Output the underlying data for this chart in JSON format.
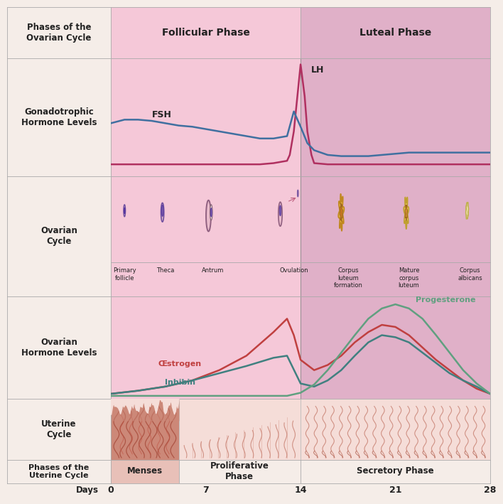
{
  "follicular_label": "Follicular Phase",
  "luteal_label": "Luteal Phase",
  "days_ticks": [
    0,
    7,
    14,
    21,
    28
  ],
  "colors": {
    "label_bg": "#f5ede8",
    "follicular_bg": "#f5c8d8",
    "luteal_bg": "#e0b0c8",
    "lh_color": "#b03060",
    "fsh_color": "#4070a0",
    "estrogen_color": "#c04040",
    "inhibin_color": "#408080",
    "progesterone_color": "#60a080",
    "border": "#aaaaaa",
    "text_dark": "#222222"
  },
  "lh_curve": {
    "x": [
      0,
      2,
      4,
      6,
      8,
      10,
      11,
      12,
      13,
      13.2,
      13.5,
      14,
      14.3,
      14.5,
      14.8,
      15,
      16,
      17,
      18,
      19,
      20,
      21,
      22,
      23,
      24,
      25,
      26,
      27,
      28
    ],
    "y": [
      0.1,
      0.1,
      0.1,
      0.1,
      0.1,
      0.1,
      0.1,
      0.11,
      0.13,
      0.18,
      0.38,
      0.95,
      0.68,
      0.38,
      0.18,
      0.11,
      0.1,
      0.1,
      0.1,
      0.1,
      0.1,
      0.1,
      0.1,
      0.1,
      0.1,
      0.1,
      0.1,
      0.1,
      0.1
    ]
  },
  "fsh_curve": {
    "x": [
      0,
      1,
      2,
      3,
      4,
      5,
      6,
      7,
      8,
      9,
      10,
      11,
      12,
      13,
      13.5,
      14,
      14.5,
      15,
      16,
      17,
      18,
      19,
      20,
      21,
      22,
      23,
      24,
      25,
      26,
      27,
      28
    ],
    "y": [
      0.45,
      0.48,
      0.48,
      0.47,
      0.45,
      0.43,
      0.42,
      0.4,
      0.38,
      0.36,
      0.34,
      0.32,
      0.32,
      0.34,
      0.55,
      0.42,
      0.28,
      0.22,
      0.18,
      0.17,
      0.17,
      0.17,
      0.18,
      0.19,
      0.2,
      0.2,
      0.2,
      0.2,
      0.2,
      0.2,
      0.2
    ]
  },
  "estrogen_curve": {
    "x": [
      0,
      2,
      4,
      6,
      8,
      10,
      12,
      13,
      13.5,
      14,
      15,
      16,
      17,
      18,
      19,
      20,
      21,
      22,
      23,
      24,
      25,
      26,
      27,
      28
    ],
    "y": [
      0.05,
      0.08,
      0.12,
      0.18,
      0.28,
      0.42,
      0.65,
      0.78,
      0.62,
      0.38,
      0.28,
      0.33,
      0.42,
      0.55,
      0.65,
      0.72,
      0.7,
      0.62,
      0.5,
      0.38,
      0.28,
      0.18,
      0.1,
      0.05
    ]
  },
  "inhibin_curve": {
    "x": [
      0,
      2,
      4,
      6,
      8,
      10,
      12,
      13,
      14,
      15,
      16,
      17,
      18,
      19,
      20,
      21,
      22,
      23,
      24,
      25,
      26,
      27,
      28
    ],
    "y": [
      0.05,
      0.08,
      0.12,
      0.18,
      0.25,
      0.32,
      0.4,
      0.42,
      0.15,
      0.12,
      0.18,
      0.28,
      0.42,
      0.55,
      0.62,
      0.6,
      0.55,
      0.45,
      0.35,
      0.25,
      0.18,
      0.12,
      0.05
    ]
  },
  "progesterone_curve": {
    "x": [
      0,
      2,
      4,
      6,
      8,
      10,
      12,
      13,
      14,
      15,
      16,
      17,
      18,
      19,
      20,
      21,
      22,
      23,
      24,
      25,
      26,
      27,
      28
    ],
    "y": [
      0.03,
      0.03,
      0.03,
      0.03,
      0.03,
      0.03,
      0.03,
      0.03,
      0.06,
      0.14,
      0.28,
      0.45,
      0.62,
      0.78,
      0.88,
      0.92,
      0.88,
      0.78,
      0.62,
      0.45,
      0.28,
      0.15,
      0.05
    ]
  },
  "ovarian_stages": [
    {
      "name": "Primary\nfollicle",
      "x": 1.0
    },
    {
      "name": "Theca",
      "x": 4.0
    },
    {
      "name": "Antrum",
      "x": 7.5
    },
    {
      "name": "Ovulation",
      "x": 13.5
    },
    {
      "name": "Corpus\nluteum\nformation",
      "x": 17.5
    },
    {
      "name": "Mature\ncorpus\nluteum",
      "x": 22.0
    },
    {
      "name": "Corpus\nalbicans",
      "x": 26.5
    }
  ]
}
